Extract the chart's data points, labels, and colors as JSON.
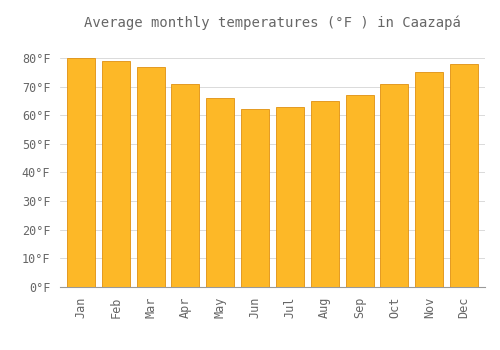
{
  "title": "Average monthly temperatures (°F ) in Caazapá",
  "months": [
    "Jan",
    "Feb",
    "Mar",
    "Apr",
    "May",
    "Jun",
    "Jul",
    "Aug",
    "Sep",
    "Oct",
    "Nov",
    "Dec"
  ],
  "values": [
    80,
    79,
    77,
    71,
    66,
    62,
    63,
    65,
    67,
    71,
    75,
    78
  ],
  "bar_color": "#FDB827",
  "bar_edge_color": "#E09010",
  "background_color": "#FFFFFF",
  "grid_color": "#CCCCCC",
  "text_color": "#666666",
  "ylim": [
    0,
    88
  ],
  "yticks": [
    0,
    10,
    20,
    30,
    40,
    50,
    60,
    70,
    80
  ],
  "ylabel_suffix": "°F",
  "title_fontsize": 10,
  "tick_fontsize": 8.5,
  "bar_width": 0.8
}
